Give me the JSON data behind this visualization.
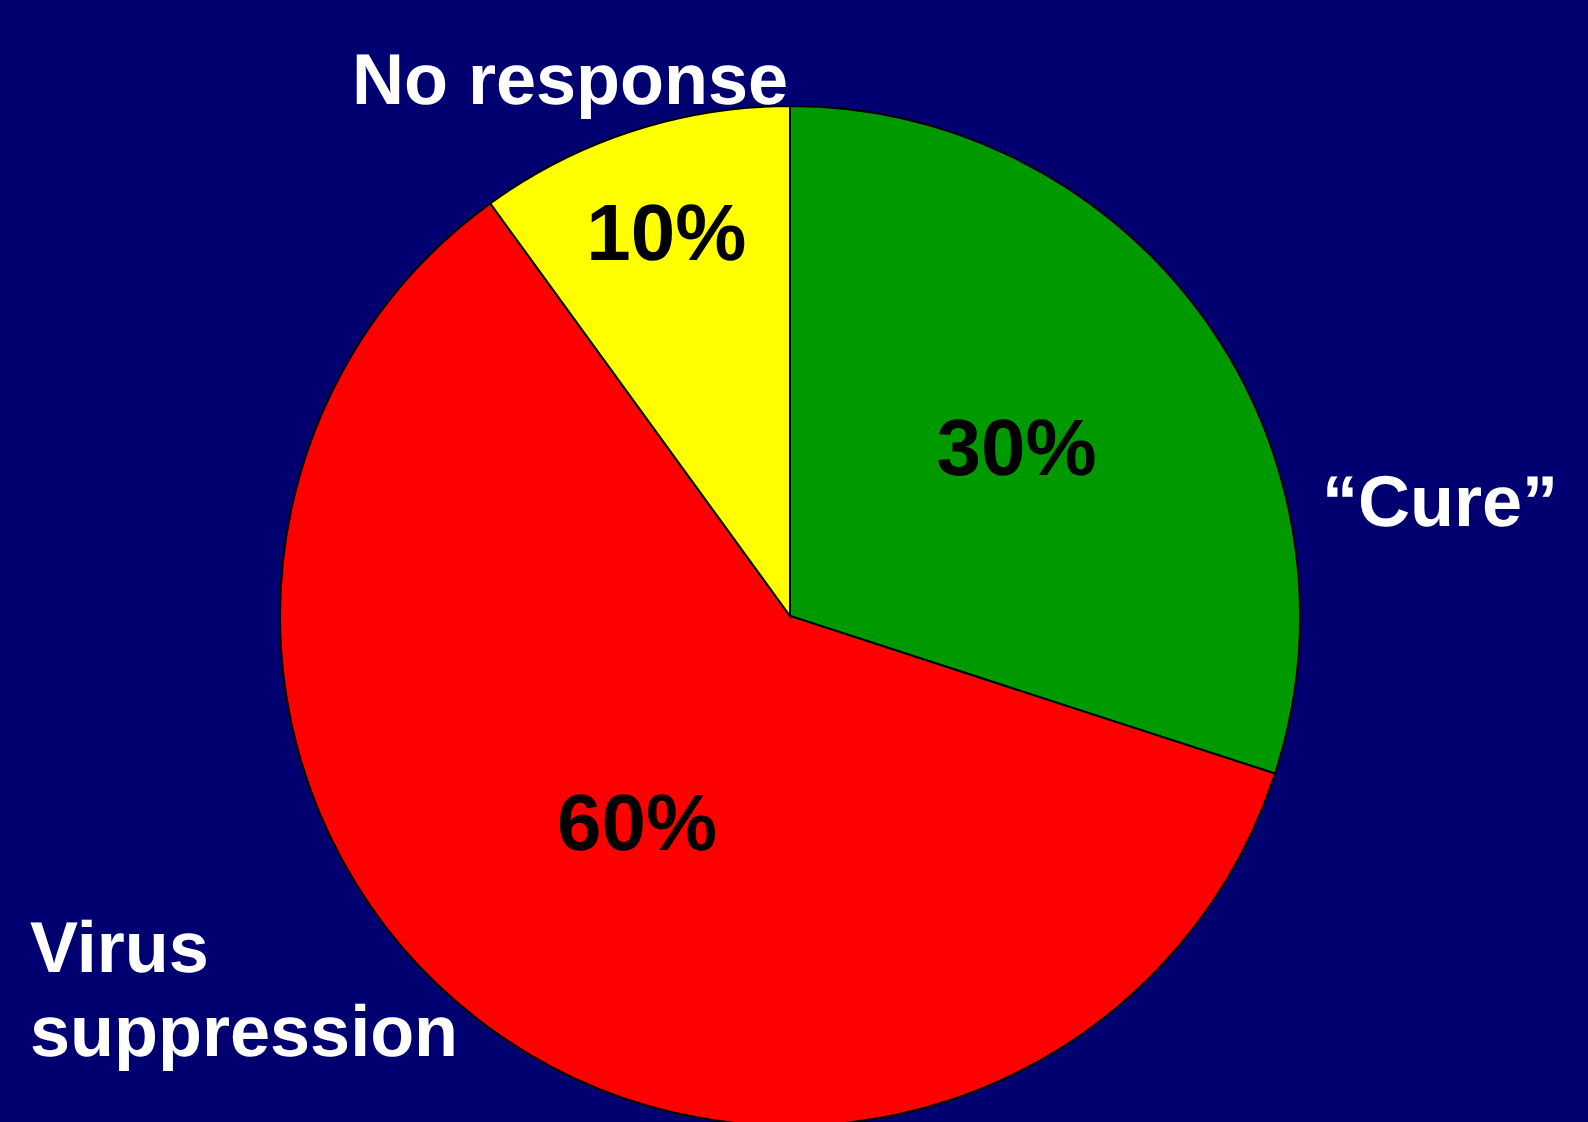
{
  "chart_data": {
    "type": "pie",
    "categories": [
      "“Cure”",
      "Virus suppression",
      "No response"
    ],
    "values": [
      30,
      60,
      10
    ],
    "colors": [
      "#009900",
      "#ff0000",
      "#ffff00"
    ],
    "value_labels": [
      "30%",
      "60%",
      "10%"
    ]
  }
}
